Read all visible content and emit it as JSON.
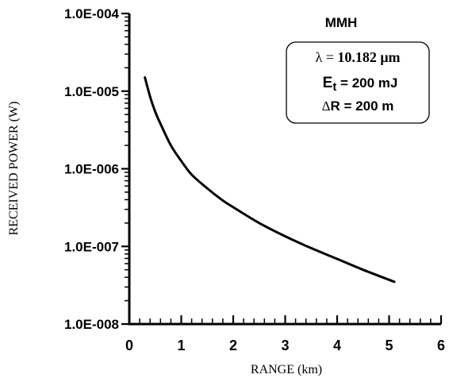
{
  "chart_data": {
    "type": "line",
    "title": "MMH",
    "xlabel": "RANGE (km)",
    "ylabel": "RECEIVED  POWER (W)",
    "xlim": [
      0,
      6
    ],
    "ylim": [
      1e-08,
      0.0001
    ],
    "yscale": "log",
    "grid": false,
    "x_ticks": [
      "0",
      "1",
      "2",
      "3",
      "4",
      "5",
      "6"
    ],
    "y_ticks": [
      "1.0E-008",
      "1.0E-007",
      "1.0E-006",
      "1.0E-005",
      "1.0E-004"
    ],
    "annotations": {
      "lambda": {
        "symbol": "λ",
        "eq": " = ",
        "value": "10.182",
        "unit": "μm"
      },
      "energy": {
        "symbol": "E",
        "sub": "t",
        "text": " = 200 mJ"
      },
      "resolution": {
        "symbol": "Δ",
        "text": "R = 200 m"
      }
    },
    "series": [
      {
        "x": [
          0.3,
          0.4,
          0.5,
          0.6,
          0.8,
          1.0,
          1.2,
          1.5,
          1.8,
          2.0,
          2.5,
          3.0,
          3.5,
          4.0,
          4.5,
          5.1
        ],
        "y": [
          1.5e-05,
          8.5e-06,
          5.4e-06,
          3.8e-06,
          2e-06,
          1.26e-06,
          8.4e-07,
          5.6e-07,
          3.9e-07,
          3.2e-07,
          2e-07,
          1.35e-07,
          9.5e-08,
          6.9e-08,
          5e-08,
          3.5e-08
        ]
      }
    ]
  }
}
